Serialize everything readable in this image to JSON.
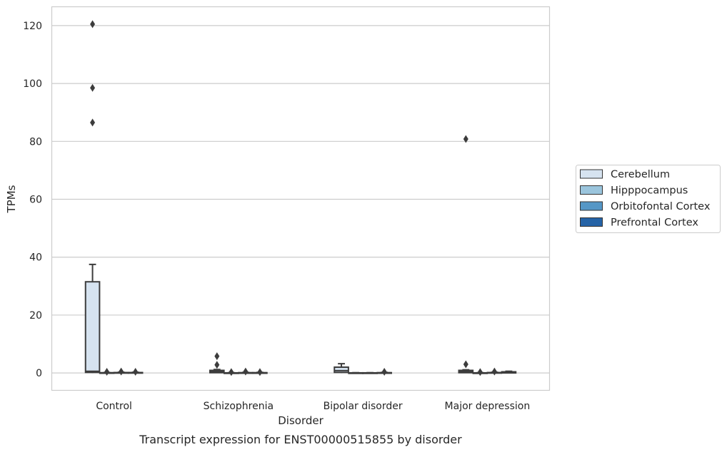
{
  "chart_data": {
    "type": "box",
    "caption": "Transcript expression for ENST00000515855 by disorder",
    "xlabel": "Disorder",
    "ylabel": "TPMs",
    "ylim": [
      -6,
      126.5
    ],
    "yticks": [
      0,
      20,
      40,
      60,
      80,
      100,
      120
    ],
    "grid": true,
    "legend_position": "right",
    "categories": [
      "Control",
      "Schizophrenia",
      "Bipolar disorder",
      "Major depression"
    ],
    "series": [
      {
        "name": "Cerebellum",
        "color": "#d6e3f0",
        "boxes": [
          {
            "q1": 0.2,
            "median": 0.6,
            "q3": 31.5,
            "whisker_low": 0,
            "whisker_high": 37.5,
            "outliers": [
              86.5,
              98.5,
              120.5
            ]
          },
          {
            "q1": 0.1,
            "median": 0.4,
            "q3": 0.9,
            "whisker_low": 0,
            "whisker_high": 1.2,
            "outliers": [
              2.8,
              5.8
            ]
          },
          {
            "q1": 0.2,
            "median": 0.8,
            "q3": 2.0,
            "whisker_low": 0,
            "whisker_high": 3.2,
            "outliers": []
          },
          {
            "q1": 0.1,
            "median": 0.4,
            "q3": 0.9,
            "whisker_low": 0,
            "whisker_high": 1.1,
            "outliers": [
              3.0,
              80.8
            ]
          }
        ]
      },
      {
        "name": "Hipppocampus",
        "color": "#9bc5dd",
        "boxes": [
          {
            "q1": 0,
            "median": 0,
            "q3": 0.1,
            "whisker_low": 0,
            "whisker_high": 0.15,
            "outliers": [
              0.4
            ]
          },
          {
            "q1": 0,
            "median": 0,
            "q3": 0.05,
            "whisker_low": 0,
            "whisker_high": 0.1,
            "outliers": [
              0.3
            ]
          },
          {
            "q1": 0,
            "median": 0,
            "q3": 0.05,
            "whisker_low": 0,
            "whisker_high": 0.1,
            "outliers": []
          },
          {
            "q1": 0,
            "median": 0,
            "q3": 0.05,
            "whisker_low": 0,
            "whisker_high": 0.1,
            "outliers": [
              0.3
            ]
          }
        ]
      },
      {
        "name": "Orbitofontal Cortex",
        "color": "#5597c6",
        "boxes": [
          {
            "q1": 0,
            "median": 0.05,
            "q3": 0.15,
            "whisker_low": 0,
            "whisker_high": 0.25,
            "outliers": [
              0.5
            ]
          },
          {
            "q1": 0,
            "median": 0.05,
            "q3": 0.1,
            "whisker_low": 0,
            "whisker_high": 0.2,
            "outliers": [
              0.5
            ]
          },
          {
            "q1": 0,
            "median": 0,
            "q3": 0.05,
            "whisker_low": 0,
            "whisker_high": 0.1,
            "outliers": []
          },
          {
            "q1": 0,
            "median": 0.05,
            "q3": 0.15,
            "whisker_low": 0,
            "whisker_high": 0.25,
            "outliers": [
              0.5
            ]
          }
        ]
      },
      {
        "name": "Prefrontal Cortex",
        "color": "#2563a6",
        "boxes": [
          {
            "q1": 0,
            "median": 0.05,
            "q3": 0.15,
            "whisker_low": 0,
            "whisker_high": 0.25,
            "outliers": [
              0.4
            ]
          },
          {
            "q1": 0,
            "median": 0.05,
            "q3": 0.1,
            "whisker_low": 0,
            "whisker_high": 0.2,
            "outliers": [
              0.3
            ]
          },
          {
            "q1": 0,
            "median": 0.05,
            "q3": 0.1,
            "whisker_low": 0,
            "whisker_high": 0.2,
            "outliers": [
              0.4
            ]
          },
          {
            "q1": 0,
            "median": 0.1,
            "q3": 0.4,
            "whisker_low": 0,
            "whisker_high": 0.6,
            "outliers": []
          }
        ]
      }
    ]
  }
}
